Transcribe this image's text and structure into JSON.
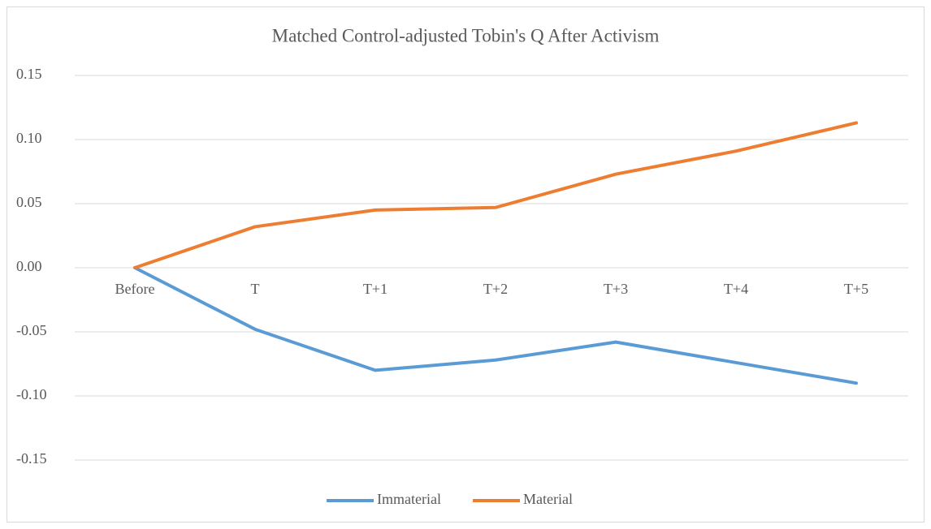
{
  "chart_data": {
    "type": "line",
    "title": "Matched Control-adjusted Tobin's Q After Activism",
    "categories": [
      "Before",
      "T",
      "T+1",
      "T+2",
      "T+3",
      "T+4",
      "T+5"
    ],
    "series": [
      {
        "name": "Immaterial",
        "color": "#5b9bd5",
        "values": [
          0,
          -0.048,
          -0.08,
          -0.072,
          -0.058,
          -0.074,
          -0.09
        ]
      },
      {
        "name": "Material",
        "color": "#ed7d31",
        "values": [
          0,
          0.032,
          0.045,
          0.047,
          0.073,
          0.091,
          0.113
        ]
      }
    ],
    "ylim": [
      -0.15,
      0.15
    ],
    "yticks": [
      -0.15,
      {
        "value": -0.1,
        "label": "-0.10"
      },
      -0.05,
      {
        "value": 0,
        "label": "0.00"
      },
      0.05,
      {
        "value": 0.1,
        "label": "0.10"
      },
      0.15
    ],
    "grid": true,
    "legend": "bottom"
  }
}
